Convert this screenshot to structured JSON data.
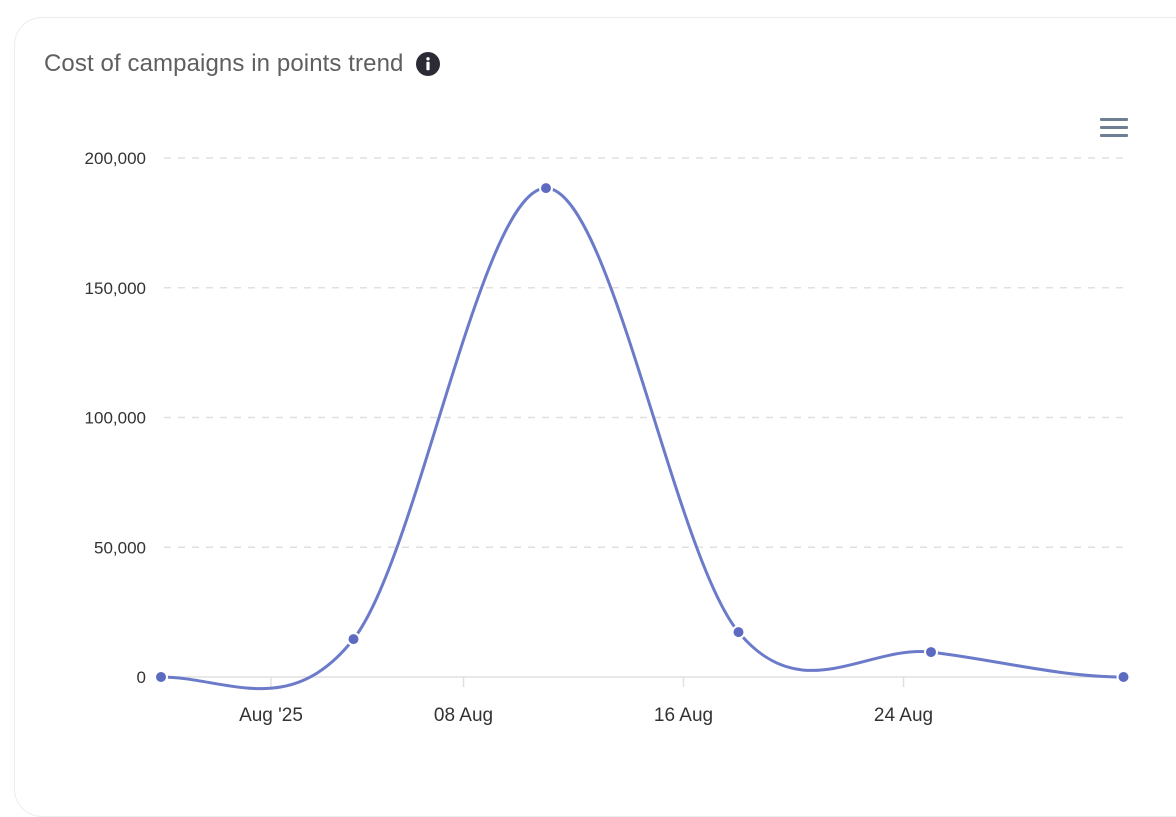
{
  "card": {
    "title": "Cost of campaigns in points trend",
    "info_icon": "info-circle-icon",
    "menu_icon": "hamburger-menu-icon"
  },
  "colors": {
    "series": "#6b7bc9",
    "marker": "#5c6bc0",
    "grid": "#e0e0e0",
    "title": "#5f5f5f",
    "axis_text": "#333333",
    "menu": "#6e7f93"
  },
  "chart_data": {
    "type": "line",
    "title": "Cost of campaigns in points trend",
    "xlabel": "",
    "ylabel": "",
    "smooth": true,
    "grid": true,
    "legend": false,
    "ylim": [
      0,
      200000
    ],
    "y_ticks": [
      0,
      50000,
      100000,
      150000,
      200000
    ],
    "y_tick_labels": [
      "0",
      "50,000",
      "100,000",
      "150,000",
      "200,000"
    ],
    "x_tick_labels": [
      "Aug '25",
      "08 Aug",
      "16 Aug",
      "24 Aug"
    ],
    "x_tick_days": [
      1,
      8,
      16,
      24
    ],
    "x": [
      "2025-07-28",
      "2025-08-04",
      "2025-08-11",
      "2025-08-18",
      "2025-08-25",
      "2025-09-01"
    ],
    "x_days": [
      -3,
      4,
      11,
      18,
      25,
      32
    ],
    "series": [
      {
        "name": "Cost of campaigns in points",
        "values": [
          0,
          14600,
          188400,
          17300,
          9600,
          0
        ]
      }
    ]
  }
}
